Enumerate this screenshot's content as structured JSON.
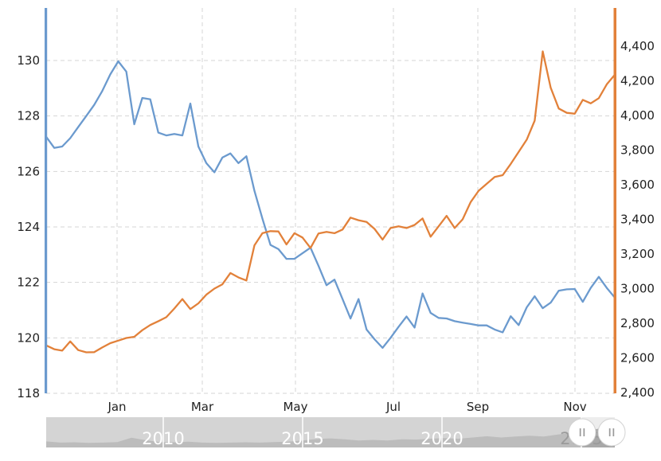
{
  "chart_data": {
    "type": "line",
    "title": "",
    "x_tick_labels": [
      "Jan",
      "Mar",
      "May",
      "Jul",
      "Sep",
      "Nov"
    ],
    "left_axis": {
      "ticks": [
        "130",
        "128",
        "126",
        "124",
        "122",
        "120",
        "118"
      ],
      "min": 118,
      "max": 131.9
    },
    "right_axis": {
      "ticks": [
        "4,400",
        "4,200",
        "4,000",
        "3,800",
        "3,600",
        "3,400",
        "3,200",
        "3,000",
        "2,800",
        "2,600",
        "2,400"
      ],
      "min": 2400,
      "max": 4600
    },
    "grid": true,
    "legend": false,
    "series": [
      {
        "name": "blue-series",
        "axis": "left",
        "color": "#6b9ace",
        "values": [
          127.25,
          126.85,
          126.9,
          127.2,
          127.6,
          128.0,
          128.4,
          128.9,
          129.5,
          129.97,
          129.6,
          127.7,
          128.65,
          128.6,
          127.4,
          127.3,
          127.35,
          127.3,
          128.45,
          126.9,
          126.3,
          125.97,
          126.5,
          126.65,
          126.3,
          126.55,
          125.3,
          124.3,
          123.35,
          123.2,
          122.85,
          122.85,
          123.05,
          123.25,
          122.6,
          121.9,
          122.1,
          121.4,
          120.7,
          121.4,
          120.3,
          119.95,
          119.64,
          120.0,
          120.4,
          120.77,
          120.37,
          121.6,
          120.9,
          120.72,
          120.7,
          120.6,
          120.55,
          120.5,
          120.45,
          120.45,
          120.3,
          120.2,
          120.78,
          120.46,
          121.1,
          121.5,
          121.07,
          121.27,
          121.7,
          121.75,
          121.76,
          121.3,
          121.8,
          122.2,
          121.8,
          121.45
        ]
      },
      {
        "name": "orange-series",
        "axis": "right",
        "color": "#e2813a",
        "values": [
          2672,
          2650,
          2642,
          2695,
          2645,
          2632,
          2633,
          2660,
          2685,
          2700,
          2715,
          2722,
          2760,
          2790,
          2812,
          2835,
          2885,
          2940,
          2882,
          2915,
          2965,
          3000,
          3025,
          3090,
          3065,
          3047,
          3250,
          3320,
          3332,
          3330,
          3255,
          3320,
          3295,
          3235,
          3318,
          3328,
          3320,
          3341,
          3410,
          3395,
          3385,
          3345,
          3283,
          3350,
          3360,
          3350,
          3368,
          3405,
          3300,
          3360,
          3420,
          3350,
          3400,
          3500,
          3565,
          3605,
          3645,
          3655,
          3720,
          3790,
          3860,
          3970,
          4370,
          4160,
          4040,
          4015,
          4010,
          4090,
          4070,
          4100,
          4180,
          4235
        ]
      }
    ]
  },
  "navigator": {
    "years": [
      "2010",
      "2015",
      "2020",
      "2025"
    ],
    "handle_glyph": "||",
    "sparkline": [
      0.2,
      0.16,
      0.17,
      0.15,
      0.16,
      0.18,
      0.32,
      0.24,
      0.18,
      0.17,
      0.19,
      0.16,
      0.15,
      0.16,
      0.17,
      0.16,
      0.18,
      0.19,
      0.23,
      0.28,
      0.3,
      0.27,
      0.23,
      0.25,
      0.23,
      0.27,
      0.26,
      0.29,
      0.31,
      0.29,
      0.33,
      0.37,
      0.33,
      0.36,
      0.39,
      0.36,
      0.43,
      0.49,
      0.56,
      0.63,
      0.67
    ]
  },
  "colors": {
    "blue": "#6b9ace",
    "orange": "#e2813a",
    "grid": "#d5d5d5",
    "label": "#222222",
    "nav_bg": "#d4d4d4",
    "nav_area": "#bcbcbc",
    "nav_window_bg": "#ededed",
    "nav_window_area": "#a8a8a8",
    "nav_year_text": "#ffffff",
    "nav_year_text_dark": "#9a9a9a",
    "handle_fill": "#ffffff",
    "handle_border": "#d2d2d2",
    "handle_glyph": "#9a9a9a"
  }
}
